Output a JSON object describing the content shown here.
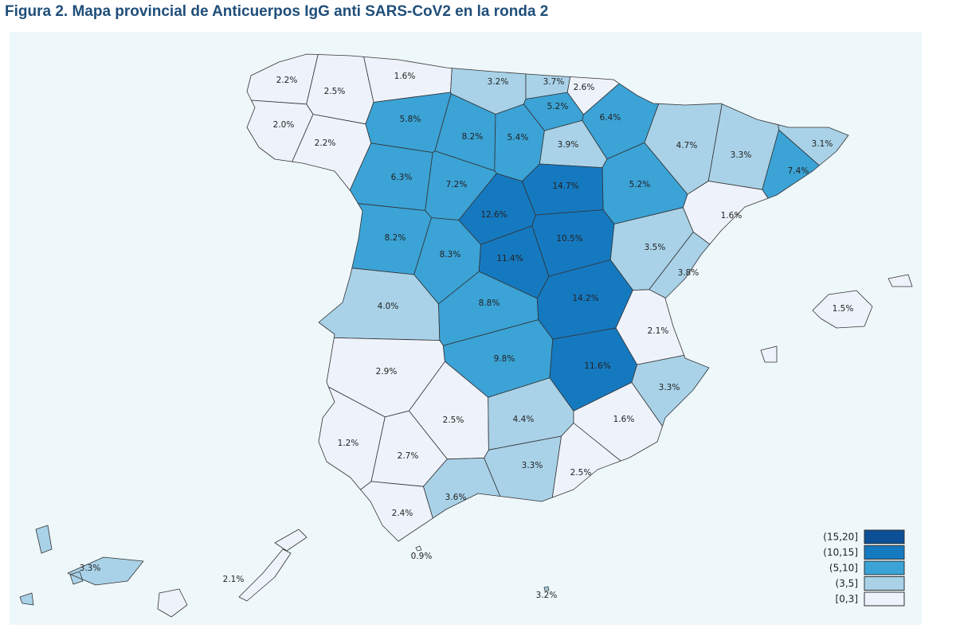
{
  "title": "Figura 2. Mapa provincial de Anticuerpos IgG anti SARS-CoV2 en la ronda 2",
  "map": {
    "provinces": [
      {
        "value": 2.2,
        "label": "2.2%"
      },
      {
        "value": 2.5,
        "label": "2.5%"
      },
      {
        "value": 1.6,
        "label": "1.6%"
      },
      {
        "value": 3.2,
        "label": "3.2%"
      },
      {
        "value": 3.7,
        "label": "3.7%"
      },
      {
        "value": 2.6,
        "label": "2.6%"
      },
      {
        "value": 5.2,
        "label": "5.2%"
      },
      {
        "value": 6.4,
        "label": "6.4%"
      },
      {
        "value": 2.0,
        "label": "2.0%"
      },
      {
        "value": 2.2,
        "label": "2.2%"
      },
      {
        "value": 5.8,
        "label": "5.8%"
      },
      {
        "value": 8.2,
        "label": "8.2%"
      },
      {
        "value": 5.4,
        "label": "5.4%"
      },
      {
        "value": 3.9,
        "label": "3.9%"
      },
      {
        "value": 4.7,
        "label": "4.7%"
      },
      {
        "value": 3.3,
        "label": "3.3%"
      },
      {
        "value": 3.1,
        "label": "3.1%"
      },
      {
        "value": 7.4,
        "label": "7.4%"
      },
      {
        "value": 6.3,
        "label": "6.3%"
      },
      {
        "value": 7.2,
        "label": "7.2%"
      },
      {
        "value": 14.7,
        "label": "14.7%"
      },
      {
        "value": 5.2,
        "label": "5.2%"
      },
      {
        "value": 1.6,
        "label": "1.6%"
      },
      {
        "value": 12.6,
        "label": "12.6%"
      },
      {
        "value": 8.2,
        "label": "8.2%"
      },
      {
        "value": 8.3,
        "label": "8.3%"
      },
      {
        "value": 11.4,
        "label": "11.4%"
      },
      {
        "value": 10.5,
        "label": "10.5%"
      },
      {
        "value": 3.5,
        "label": "3.5%"
      },
      {
        "value": 3.8,
        "label": "3.8%"
      },
      {
        "value": 4.0,
        "label": "4.0%"
      },
      {
        "value": 8.8,
        "label": "8.8%"
      },
      {
        "value": 14.2,
        "label": "14.2%"
      },
      {
        "value": 2.1,
        "label": "2.1%"
      },
      {
        "value": 2.9,
        "label": "2.9%"
      },
      {
        "value": 9.8,
        "label": "9.8%"
      },
      {
        "value": 11.6,
        "label": "11.6%"
      },
      {
        "value": 3.3,
        "label": "3.3%"
      },
      {
        "value": 2.5,
        "label": "2.5%"
      },
      {
        "value": 4.4,
        "label": "4.4%"
      },
      {
        "value": 1.6,
        "label": "1.6%"
      },
      {
        "value": 1.2,
        "label": "1.2%"
      },
      {
        "value": 2.7,
        "label": "2.7%"
      },
      {
        "value": 3.3,
        "label": "3.3%"
      },
      {
        "value": 2.5,
        "label": "2.5%"
      },
      {
        "value": 3.6,
        "label": "3.6%"
      },
      {
        "value": 2.4,
        "label": "2.4%"
      },
      {
        "value": 0.9,
        "label": "0.9%"
      },
      {
        "value": 3.2,
        "label": "3.2%"
      },
      {
        "value": 1.5,
        "label": "1.5%"
      },
      {
        "value": 3.3,
        "label": "3.3%"
      },
      {
        "value": 2.1,
        "label": "2.1%"
      }
    ],
    "legend": {
      "entries": [
        {
          "label": "(15,20]",
          "color": "#0b4f96"
        },
        {
          "label": "(10,15]",
          "color": "#1579c0"
        },
        {
          "label": "(5,10]",
          "color": "#3ba3d6"
        },
        {
          "label": "(3,5]",
          "color": "#a9d2e8"
        },
        {
          "label": "[0,3]",
          "color": "#eef3fb"
        }
      ],
      "breaks": [
        20,
        15,
        10,
        5,
        3,
        0
      ]
    }
  }
}
